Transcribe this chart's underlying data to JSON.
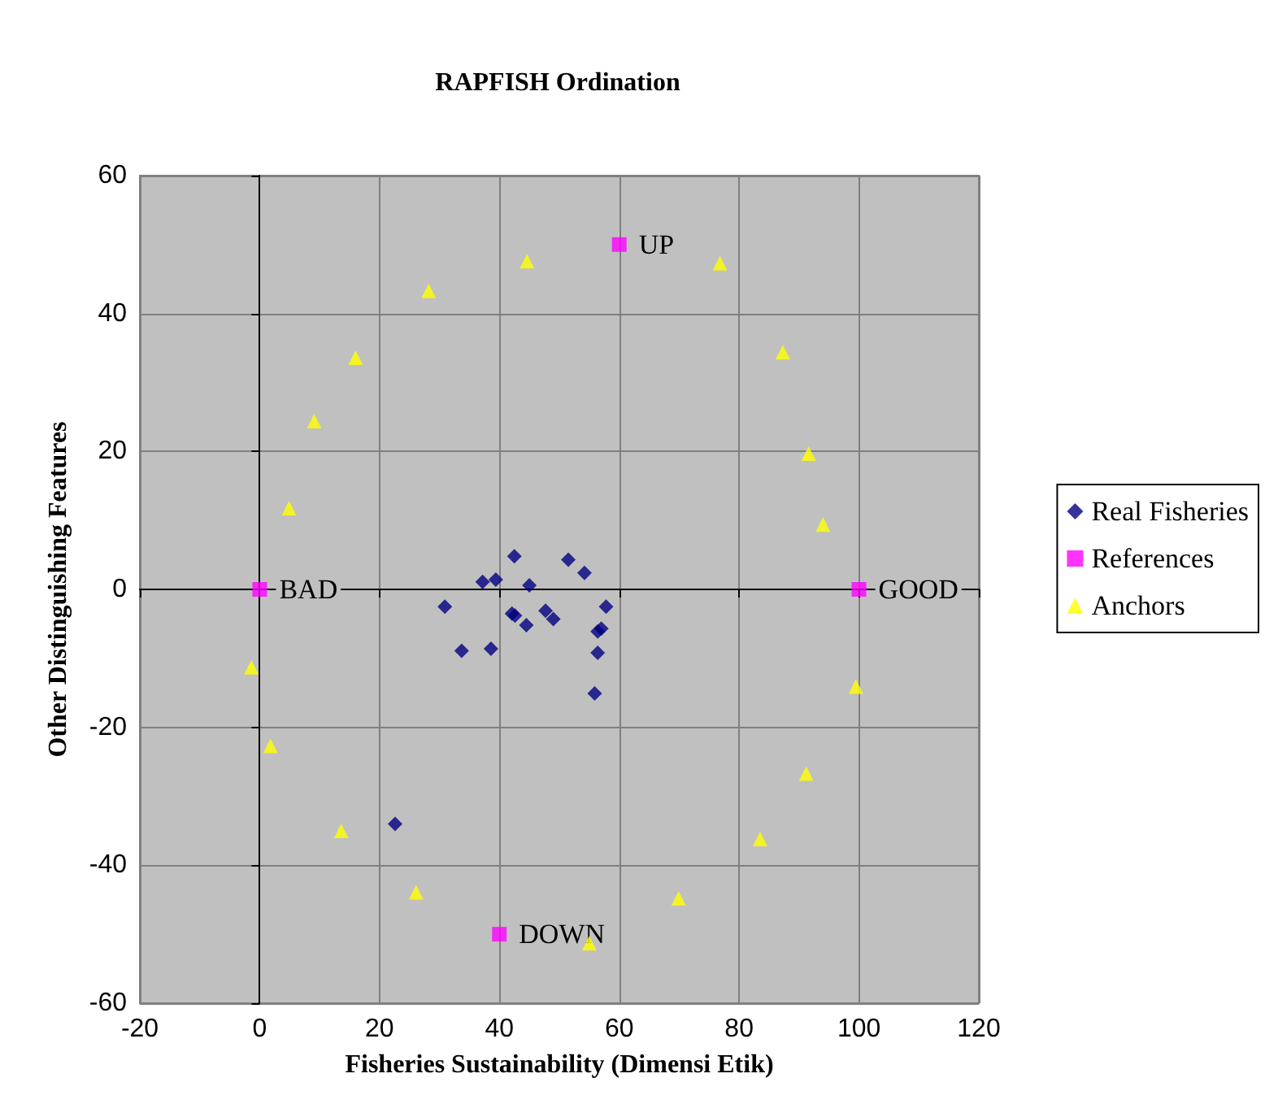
{
  "chart_data": {
    "type": "scatter",
    "title": "RAPFISH Ordination",
    "xlabel": "Fisheries Sustainability (Dimensi Etik)",
    "ylabel": "Other Distinguishing Features",
    "xlim": [
      -20,
      120
    ],
    "xticks": [
      -20,
      0,
      20,
      40,
      60,
      80,
      100,
      120
    ],
    "ylim": [
      -60,
      60
    ],
    "yticks": [
      -60,
      -40,
      -20,
      0,
      20,
      40,
      60
    ],
    "grid": true,
    "legend": "right",
    "series": [
      {
        "name": "Real Fisheries",
        "color": "#000080",
        "marker": "diamond",
        "x": [
          30.9,
          33.7,
          37.2,
          39.4,
          38.6,
          42.5,
          42.1,
          42.6,
          44.5,
          45.0,
          47.7,
          49.0,
          51.5,
          54.2,
          57.8,
          56.4,
          57.0,
          56.4,
          55.9,
          22.6
        ],
        "values": [
          -2.5,
          -8.9,
          1.1,
          1.4,
          -8.6,
          4.8,
          -3.5,
          -3.8,
          -5.2,
          0.6,
          -3.1,
          -4.3,
          4.3,
          2.4,
          -2.5,
          -6.1,
          -5.7,
          -9.2,
          -15.1,
          -34.0
        ]
      },
      {
        "name": "References",
        "color": "#ff00ff",
        "marker": "square",
        "x": [
          0,
          100,
          60,
          40
        ],
        "values": [
          0,
          0,
          50,
          -50
        ]
      },
      {
        "name": "Anchors",
        "color": "#ffff00",
        "marker": "triangle",
        "x": [
          -1.4,
          1.8,
          4.9,
          9.1,
          13.6,
          16.0,
          26.1,
          28.2,
          44.6,
          55.0,
          69.9,
          76.8,
          83.5,
          87.3,
          91.2,
          91.6,
          94.0,
          99.5
        ],
        "values": [
          -11.3,
          -22.7,
          11.8,
          24.4,
          -35.0,
          33.6,
          -43.9,
          43.3,
          47.6,
          -51.3,
          -44.8,
          47.3,
          -36.2,
          34.4,
          -26.7,
          19.7,
          9.4,
          -14.1
        ]
      }
    ],
    "annotations": [
      {
        "text": "BAD",
        "x": 0,
        "y": 0
      },
      {
        "text": "GOOD",
        "x": 100,
        "y": 0
      },
      {
        "text": "UP",
        "x": 60,
        "y": 50
      },
      {
        "text": "DOWN",
        "x": 40,
        "y": -50
      }
    ]
  }
}
